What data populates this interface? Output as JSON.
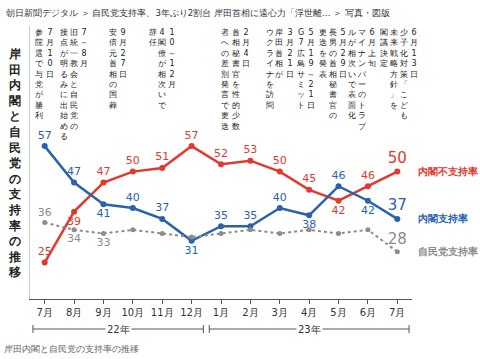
{
  "header": "朝日新聞デジタル ＞ 自民党支持率、3年ぶり2割台 岸田首相に遠心力「浮世離… ＞ 写真・図版",
  "caption": "岸田内閣と自民党の支持率の推移",
  "chart_data": {
    "type": "line",
    "title": "岸田内閣と自民党の支持率の推移",
    "categories": [
      "7月",
      "8月",
      "9月",
      "10月",
      "11月",
      "12月",
      "1月",
      "2月",
      "3月",
      "4月",
      "5月",
      "6月",
      "7月"
    ],
    "x_groups": [
      {
        "label": "22年",
        "from": 0,
        "to": 5
      },
      {
        "label": "23年",
        "from": 6,
        "to": 12
      }
    ],
    "series": [
      {
        "name": "内閣不支持率",
        "color": "#e03a2f",
        "marker": "circle",
        "line_style": "solid",
        "values": [
          25,
          39,
          47,
          50,
          51,
          57,
          52,
          53,
          50,
          45,
          42,
          46,
          50
        ]
      },
      {
        "name": "内閣支持率",
        "color": "#2a62ad",
        "marker": "circle",
        "line_style": "solid",
        "values": [
          57,
          47,
          41,
          40,
          37,
          31,
          35,
          35,
          40,
          38,
          46,
          42,
          37
        ]
      },
      {
        "name": "自民党支持率",
        "color": "#8c8c8c",
        "marker": "circle",
        "line_style": "dotted",
        "values": [
          36,
          34,
          33,
          34,
          33,
          32,
          33,
          34,
          33,
          34,
          33,
          34,
          28
        ],
        "value_labels": [
          "36",
          "34",
          "33",
          null,
          null,
          null,
          null,
          null,
          null,
          null,
          null,
          null,
          "28"
        ]
      }
    ],
    "ylim": [
      15,
      90
    ],
    "tick_labels": "x",
    "grid": false,
    "data_labels": true,
    "annotations": [
      {
        "x": 0,
        "lines": [
          "7月10日",
          "参院選で与党が勝利"
        ]
      },
      {
        "x": 1,
        "lines": [
          "7～8月",
          "旧統一教会と自民党の",
          "接点が明るみに出始める"
        ]
      },
      {
        "x": 2.5,
        "lines": [
          "9月27日",
          "安倍元首相の国葬"
        ]
      },
      {
        "x": 4,
        "lines": [
          "10～12月",
          "4閣僚が相次いで",
          "辞任"
        ]
      },
      {
        "x": 6.5,
        "lines": [
          "2月4日",
          "首相秘書官を性的少数",
          "者への差別発言で更迭"
        ]
      },
      {
        "x": 8,
        "lines": [
          "3月21日",
          "岸田首相が",
          "ウクライナを訪問"
        ]
      },
      {
        "x": 8.9,
        "lines": [
          "5月19～21日",
          "G7広島サミット"
        ]
      },
      {
        "x": 9.8,
        "lines": [
          "5月29日",
          "長男の首相秘書官の",
          "更迭を発表"
        ]
      },
      {
        "x": 10.8,
        "lines": [
          "6月上旬",
          "マイナンバーのトラブ",
          "ルが相次いで表面化"
        ]
      },
      {
        "x": 12.05,
        "lines": [
          "6月13日",
          "少子化対策「こども",
          "未来戦略方針」を",
          "閣議決定"
        ]
      }
    ]
  }
}
